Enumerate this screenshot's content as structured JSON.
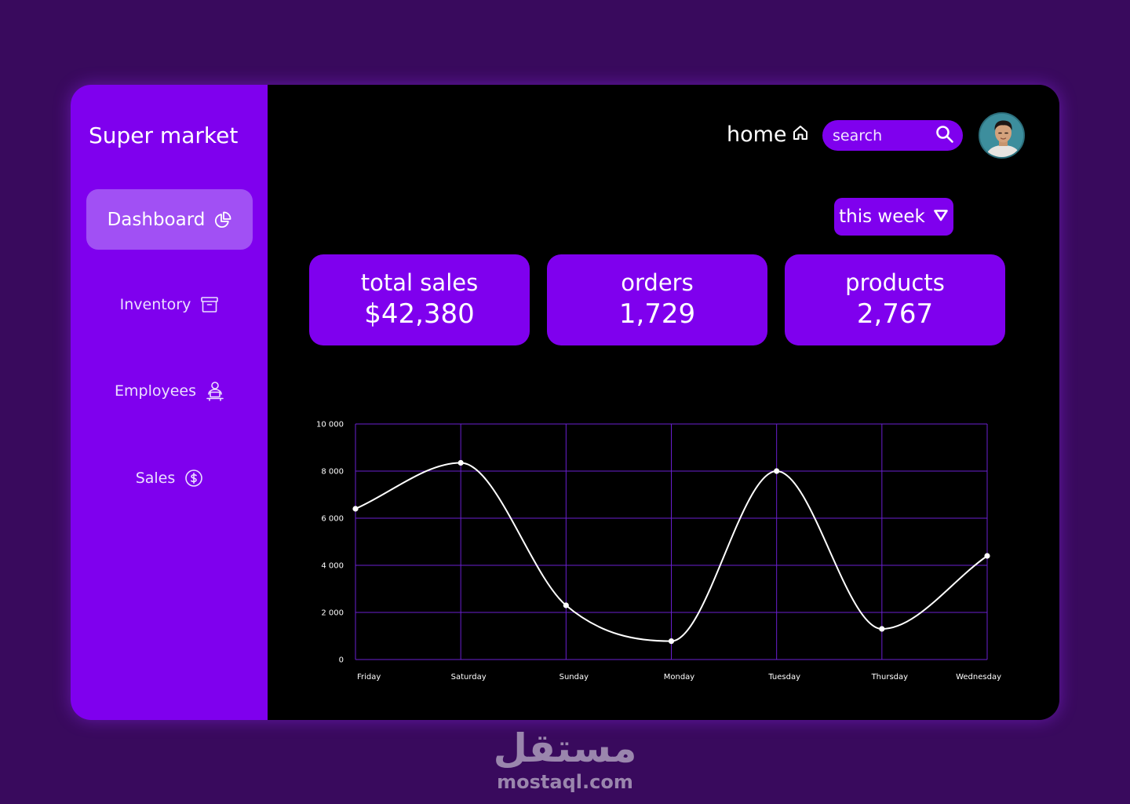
{
  "app": {
    "brand": "Super market"
  },
  "sidebar": {
    "items": [
      {
        "label": "Dashboard",
        "icon": "pie-chart-icon",
        "active": true
      },
      {
        "label": "Inventory",
        "icon": "archive-box-icon"
      },
      {
        "label": "Employees",
        "icon": "employee-desk-icon"
      },
      {
        "label": "Sales",
        "icon": "dollar-circle-icon"
      }
    ]
  },
  "header": {
    "home_label": "home",
    "home_icon": "home-icon",
    "search_placeholder": "search",
    "search_icon": "search-icon"
  },
  "filters": {
    "period": "this week",
    "period_icon": "triangle-down-icon"
  },
  "stats": [
    {
      "label": "total sales",
      "value": "$42,380"
    },
    {
      "label": "orders",
      "value": "1,729"
    },
    {
      "label": "products",
      "value": "2,767"
    }
  ],
  "chart_data": {
    "type": "line",
    "categories": [
      "Friday",
      "Saturday",
      "Sunday",
      "Monday",
      "Tuesday",
      "Thursday",
      "Wednesday"
    ],
    "values": [
      6400,
      8350,
      2300,
      780,
      8000,
      1300,
      4400
    ],
    "ylim": [
      0,
      10000
    ],
    "yticks": [
      0,
      2000,
      4000,
      6000,
      8000,
      10000
    ],
    "ytick_labels": [
      "0",
      "2 000",
      "4 000",
      "6 000",
      "8 000",
      "10 000"
    ],
    "grid": true,
    "colors": {
      "line": "#ffffff",
      "grid": "#6a1fd0",
      "points": "#ffffff"
    }
  },
  "watermark": {
    "arabic": "مستقل",
    "domain": "mostaql.com"
  },
  "colors": {
    "page_bg": "#390a5d",
    "accent": "#7f00ee",
    "active_item": "#a150f4",
    "main_bg": "#000000"
  }
}
